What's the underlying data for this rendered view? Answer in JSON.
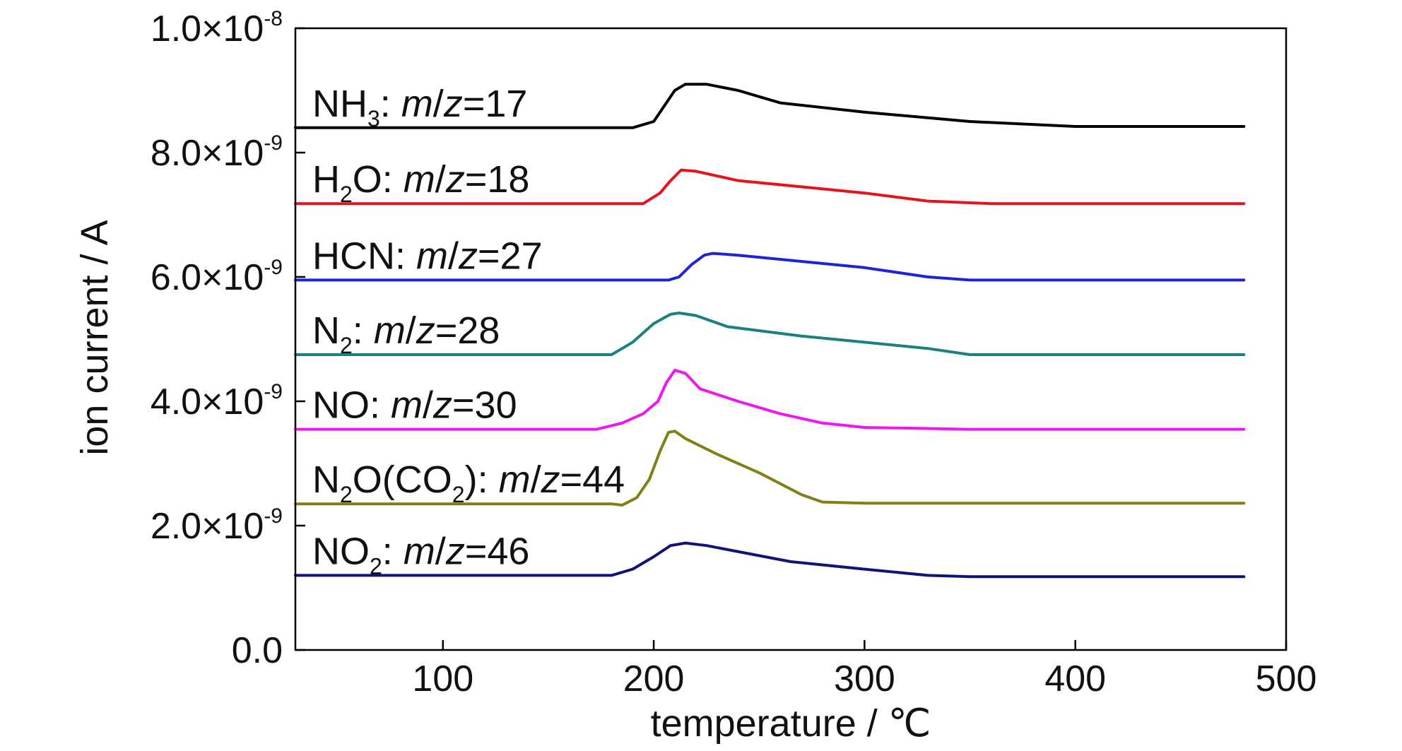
{
  "chart_data": {
    "type": "line",
    "title": "",
    "xlabel": "temperature / ℃",
    "ylabel": "ion current / A",
    "xlim": [
      30,
      500
    ],
    "ylim": [
      0,
      1e-08
    ],
    "grid": false,
    "x_ticks": [
      {
        "value": 100,
        "label": "100"
      },
      {
        "value": 200,
        "label": "200"
      },
      {
        "value": 300,
        "label": "300"
      },
      {
        "value": 400,
        "label": "400"
      },
      {
        "value": 500,
        "label": "500"
      }
    ],
    "y_ticks": [
      {
        "value": 0,
        "mantissa": "0.0",
        "exponent": ""
      },
      {
        "value": 2e-09,
        "mantissa": "2.0×10",
        "exponent": "-9"
      },
      {
        "value": 4e-09,
        "mantissa": "4.0×10",
        "exponent": "-9"
      },
      {
        "value": 6e-09,
        "mantissa": "6.0×10",
        "exponent": "-9"
      },
      {
        "value": 8e-09,
        "mantissa": "8.0×10",
        "exponent": "-9"
      },
      {
        "value": 1e-08,
        "mantissa": "1.0×10",
        "exponent": "-8"
      }
    ],
    "series": [
      {
        "name": "NH3: m/z=17",
        "label_parts": [
          {
            "text": "NH",
            "style": "normal"
          },
          {
            "text": "3",
            "style": "sub"
          },
          {
            "text": ": ",
            "style": "normal"
          },
          {
            "text": "m",
            "style": "italic"
          },
          {
            "text": "/",
            "style": "normal"
          },
          {
            "text": "z",
            "style": "italic"
          },
          {
            "text": "=17",
            "style": "normal"
          }
        ],
        "color": "#000000",
        "x": [
          30,
          190,
          200,
          205,
          210,
          215,
          225,
          240,
          260,
          300,
          350,
          400,
          450,
          480
        ],
        "y": [
          8.4e-09,
          8.4e-09,
          8.5e-09,
          8.75e-09,
          9e-09,
          9.1e-09,
          9.1e-09,
          9e-09,
          8.8e-09,
          8.65e-09,
          8.5e-09,
          8.42e-09,
          8.42e-09,
          8.42e-09
        ]
      },
      {
        "name": "H2O: m/z=18",
        "label_parts": [
          {
            "text": "H",
            "style": "normal"
          },
          {
            "text": "2",
            "style": "sub"
          },
          {
            "text": "O: ",
            "style": "normal"
          },
          {
            "text": "m",
            "style": "italic"
          },
          {
            "text": "/",
            "style": "normal"
          },
          {
            "text": "z",
            "style": "italic"
          },
          {
            "text": "=18",
            "style": "normal"
          }
        ],
        "color": "#e8121a",
        "x": [
          30,
          195,
          203,
          208,
          213,
          220,
          240,
          270,
          300,
          330,
          360,
          400,
          480
        ],
        "y": [
          7.18e-09,
          7.18e-09,
          7.35e-09,
          7.55e-09,
          7.72e-09,
          7.7e-09,
          7.55e-09,
          7.45e-09,
          7.35e-09,
          7.22e-09,
          7.18e-09,
          7.18e-09,
          7.18e-09
        ]
      },
      {
        "name": "HCN: m/z=27",
        "label_parts": [
          {
            "text": "HCN: ",
            "style": "normal"
          },
          {
            "text": "m",
            "style": "italic"
          },
          {
            "text": "/",
            "style": "normal"
          },
          {
            "text": "z",
            "style": "italic"
          },
          {
            "text": "=27",
            "style": "normal"
          }
        ],
        "color": "#1c23d9",
        "x": [
          30,
          207,
          212,
          218,
          224,
          228,
          240,
          270,
          300,
          330,
          350,
          400,
          480
        ],
        "y": [
          5.95e-09,
          5.95e-09,
          6e-09,
          6.2e-09,
          6.35e-09,
          6.38e-09,
          6.35e-09,
          6.25e-09,
          6.15e-09,
          6e-09,
          5.95e-09,
          5.95e-09,
          5.95e-09
        ]
      },
      {
        "name": "N2: m/z=28",
        "label_parts": [
          {
            "text": "N",
            "style": "normal"
          },
          {
            "text": "2",
            "style": "sub"
          },
          {
            "text": ": ",
            "style": "normal"
          },
          {
            "text": "m",
            "style": "italic"
          },
          {
            "text": "/",
            "style": "normal"
          },
          {
            "text": "z",
            "style": "italic"
          },
          {
            "text": "=28",
            "style": "normal"
          }
        ],
        "color": "#1a8080",
        "x": [
          30,
          180,
          190,
          200,
          208,
          212,
          220,
          235,
          270,
          300,
          330,
          350,
          400,
          480
        ],
        "y": [
          4.75e-09,
          4.75e-09,
          4.95e-09,
          5.25e-09,
          5.4e-09,
          5.42e-09,
          5.38e-09,
          5.2e-09,
          5.05e-09,
          4.95e-09,
          4.85e-09,
          4.75e-09,
          4.75e-09,
          4.75e-09
        ]
      },
      {
        "name": "NO: m/z=30",
        "label_parts": [
          {
            "text": "NO: ",
            "style": "normal"
          },
          {
            "text": "m",
            "style": "italic"
          },
          {
            "text": "/",
            "style": "normal"
          },
          {
            "text": "z",
            "style": "italic"
          },
          {
            "text": "=30",
            "style": "normal"
          }
        ],
        "color": "#ef17ef",
        "x": [
          30,
          173,
          185,
          195,
          202,
          206,
          210,
          215,
          222,
          240,
          260,
          280,
          300,
          350,
          480
        ],
        "y": [
          3.55e-09,
          3.55e-09,
          3.65e-09,
          3.8e-09,
          4e-09,
          4.3e-09,
          4.5e-09,
          4.45e-09,
          4.2e-09,
          4e-09,
          3.8e-09,
          3.65e-09,
          3.58e-09,
          3.55e-09,
          3.55e-09
        ]
      },
      {
        "name": "N2O(CO2): m/z=44",
        "label_parts": [
          {
            "text": "N",
            "style": "normal"
          },
          {
            "text": "2",
            "style": "sub"
          },
          {
            "text": "O(CO",
            "style": "normal"
          },
          {
            "text": "2",
            "style": "sub"
          },
          {
            "text": "): ",
            "style": "normal"
          },
          {
            "text": "m",
            "style": "italic"
          },
          {
            "text": "/",
            "style": "normal"
          },
          {
            "text": "z",
            "style": "italic"
          },
          {
            "text": "=44",
            "style": "normal"
          }
        ],
        "color": "#808019",
        "x": [
          30,
          180,
          185,
          192,
          198,
          203,
          207,
          210,
          215,
          230,
          250,
          270,
          280,
          300,
          480
        ],
        "y": [
          2.35e-09,
          2.35e-09,
          2.33e-09,
          2.45e-09,
          2.75e-09,
          3.2e-09,
          3.5e-09,
          3.52e-09,
          3.4e-09,
          3.15e-09,
          2.85e-09,
          2.5e-09,
          2.38e-09,
          2.36e-09,
          2.36e-09
        ]
      },
      {
        "name": "NO2: m/z=46",
        "label_parts": [
          {
            "text": "NO",
            "style": "normal"
          },
          {
            "text": "2",
            "style": "sub"
          },
          {
            "text": ": ",
            "style": "normal"
          },
          {
            "text": "m",
            "style": "italic"
          },
          {
            "text": "/",
            "style": "normal"
          },
          {
            "text": "z",
            "style": "italic"
          },
          {
            "text": "=46",
            "style": "normal"
          }
        ],
        "color": "#11137a",
        "x": [
          30,
          180,
          190,
          200,
          208,
          215,
          225,
          245,
          265,
          300,
          330,
          350,
          400,
          480
        ],
        "y": [
          1.2e-09,
          1.2e-09,
          1.3e-09,
          1.5e-09,
          1.68e-09,
          1.72e-09,
          1.68e-09,
          1.55e-09,
          1.42e-09,
          1.3e-09,
          1.2e-09,
          1.18e-09,
          1.18e-09,
          1.18e-09
        ]
      }
    ]
  }
}
